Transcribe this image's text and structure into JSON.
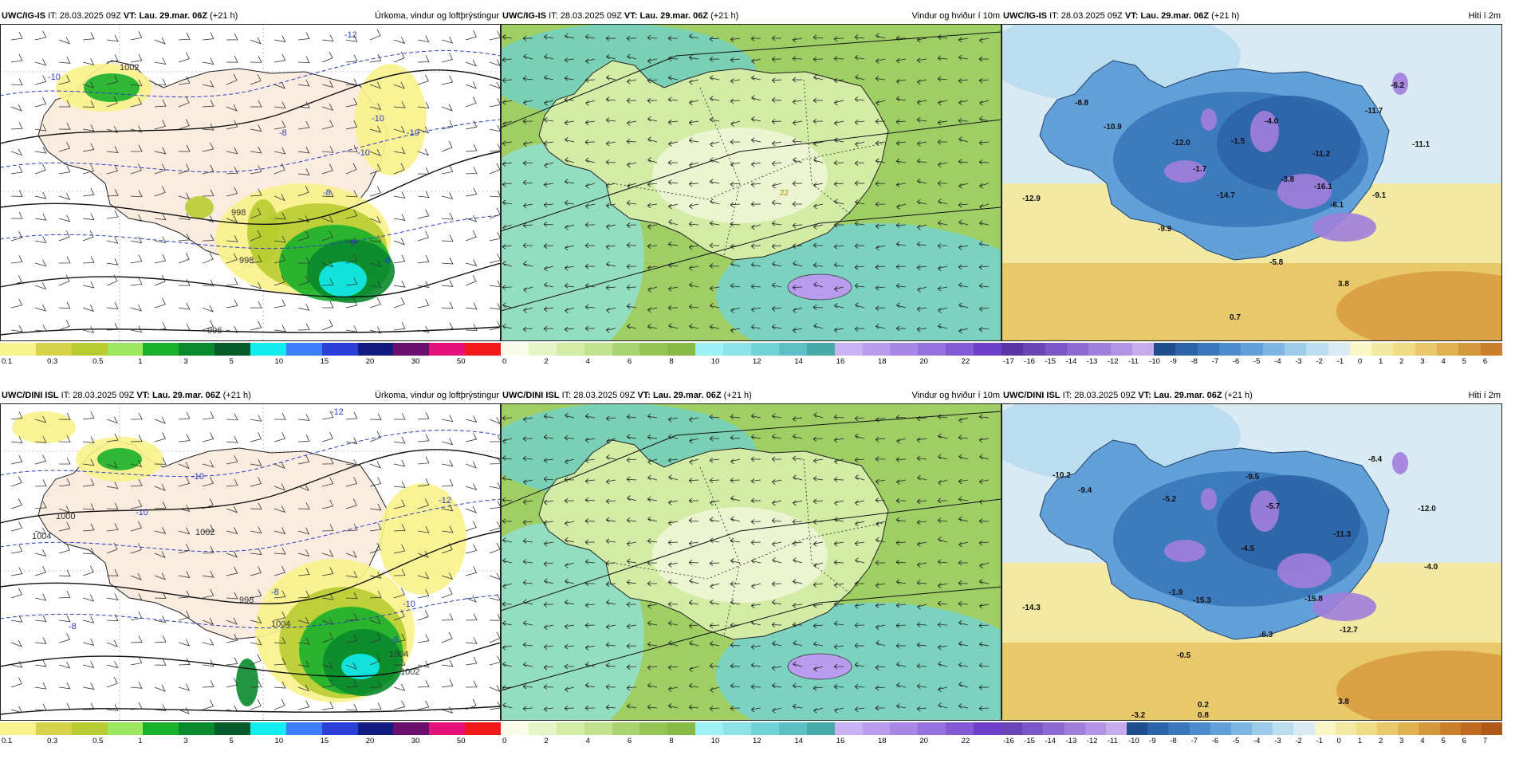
{
  "panels": [
    {
      "model": "UWC/IG-IS",
      "it_label": "IT:",
      "it": "28.03.2025 09Z",
      "vt_label": "VT:",
      "vt": "Lau. 29.mar. 06Z",
      "lead": "(+21 h)",
      "title": "Úrkoma, vindur og loftþrýstingur",
      "kind": "precip",
      "labels": [
        "1002",
        "998",
        "998",
        "996",
        "-10",
        "-10",
        "-8",
        "-8",
        "-12",
        "-10",
        "-6",
        "-8",
        "-10"
      ],
      "colorbar": {
        "colors": [
          "#f8f28a",
          "#d6d24a",
          "#b7cc30",
          "#9be860",
          "#19b02c",
          "#0a8a2e",
          "#055c2a",
          "#12ecee",
          "#3f7dff",
          "#2b3fd6",
          "#121b80",
          "#6a0f6e",
          "#e4117a",
          "#f01818"
        ],
        "ticks": [
          "0.1",
          "0.3",
          "0.5",
          "1",
          "3",
          "5",
          "10",
          "15",
          "20",
          "30",
          "50"
        ]
      }
    },
    {
      "model": "UWC/IG-IS",
      "it_label": "IT:",
      "it": "28.03.2025 09Z",
      "vt_label": "VT:",
      "vt": "Lau. 29.mar. 06Z",
      "lead": "(+21 h)",
      "title": "Vindur og hviður í 10m",
      "kind": "wind",
      "labels": [
        "22"
      ],
      "colorbar": {
        "colors": [
          "#f7fbe8",
          "#e4f4c4",
          "#d2eca6",
          "#bfe190",
          "#a9d36f",
          "#95c557",
          "#86b945",
          "#9ef2f6",
          "#8ee3e8",
          "#72d3d6",
          "#5ec0c4",
          "#48aaa8",
          "#c8b2f4",
          "#b99ced",
          "#a886e6",
          "#9670dd",
          "#845ad4",
          "#6e3fc8"
        ],
        "ticks": [
          "0",
          "2",
          "4",
          "6",
          "8",
          "10",
          "12",
          "14",
          "16",
          "18",
          "20",
          "22"
        ]
      }
    },
    {
      "model": "UWC/IG-IS",
      "it_label": "IT:",
      "it": "28.03.2025 09Z",
      "vt_label": "VT:",
      "vt": "Lau. 29.mar. 06Z",
      "lead": "(+21 h)",
      "title": "Hiti í 2m",
      "kind": "temp",
      "labels": [
        "-8.8",
        "-10.9",
        "-12.0",
        "-1.5",
        "-4.0",
        "-11.7",
        "-6.2",
        "-11.1",
        "-1.7",
        "-14.7",
        "-3.8",
        "-16.1",
        "-11.2",
        "-6.1",
        "-9.1",
        "-12.9",
        "-9.9",
        "-5.8",
        "3.8",
        "0.7"
      ],
      "colorbar": {
        "colors": [
          "#5a34a4",
          "#6b44b6",
          "#7c56c6",
          "#8e69d2",
          "#a07edc",
          "#b394e4",
          "#c6acec",
          "#1f4e8e",
          "#2c63a8",
          "#3a77bc",
          "#4c8bcc",
          "#61a0d8",
          "#7db6e2",
          "#9ccbea",
          "#bcdcef",
          "#d9ebf2",
          "#fbf6c8",
          "#f4e9a2",
          "#eedb84",
          "#e8c868",
          "#e0b14f",
          "#d6983c",
          "#ca7f2c"
        ],
        "ticks": [
          "-17",
          "-16",
          "-15",
          "-14",
          "-13",
          "-12",
          "-11",
          "-10",
          "-9",
          "-8",
          "-7",
          "-6",
          "-5",
          "-4",
          "-3",
          "-2",
          "-1",
          "0",
          "1",
          "2",
          "3",
          "4",
          "5",
          "6"
        ]
      }
    },
    {
      "model": "UWC/DINI ISL",
      "it_label": "IT:",
      "it": "28.03.2025 09Z",
      "vt_label": "VT:",
      "vt": "Lau. 29.mar. 06Z",
      "lead": "(+21 h)",
      "title": "Úrkoma, vindur og loftþrýstingur",
      "kind": "precip",
      "labels": [
        "1000",
        "1004",
        "1002",
        "998",
        "1004",
        "-12",
        "-10",
        "-10",
        "-8",
        "-12",
        "-10",
        "-8",
        "-6",
        "1004",
        "1002"
      ],
      "colorbar": {
        "colors": [
          "#f8f28a",
          "#d6d24a",
          "#b7cc30",
          "#9be860",
          "#19b02c",
          "#0a8a2e",
          "#055c2a",
          "#12ecee",
          "#3f7dff",
          "#2b3fd6",
          "#121b80",
          "#6a0f6e",
          "#e4117a",
          "#f01818"
        ],
        "ticks": [
          "0.1",
          "0.3",
          "0.5",
          "1",
          "3",
          "5",
          "10",
          "15",
          "20",
          "30",
          "50"
        ]
      }
    },
    {
      "model": "UWC/DINI ISL",
      "it_label": "IT:",
      "it": "28.03.2025 09Z",
      "vt_label": "VT:",
      "vt": "Lau. 29.mar. 06Z",
      "lead": "(+21 h)",
      "title": "Vindur og hviður í 10m",
      "kind": "wind",
      "labels": [],
      "colorbar": {
        "colors": [
          "#f7fbe8",
          "#e4f4c4",
          "#d2eca6",
          "#bfe190",
          "#a9d36f",
          "#95c557",
          "#86b945",
          "#9ef2f6",
          "#8ee3e8",
          "#72d3d6",
          "#5ec0c4",
          "#48aaa8",
          "#c8b2f4",
          "#b99ced",
          "#a886e6",
          "#9670dd",
          "#845ad4",
          "#6e3fc8"
        ],
        "ticks": [
          "0",
          "2",
          "4",
          "6",
          "8",
          "10",
          "12",
          "14",
          "16",
          "18",
          "20",
          "22"
        ]
      }
    },
    {
      "model": "UWC/DINI ISL",
      "it_label": "IT:",
      "it": "28.03.2025 09Z",
      "vt_label": "VT:",
      "vt": "Lau. 29.mar. 06Z",
      "lead": "(+21 h)",
      "title": "Hiti í 2m",
      "kind": "temp",
      "labels": [
        "-10.2",
        "-9.4",
        "-5.2",
        "-9.5",
        "-5.7",
        "-8.4",
        "-12.0",
        "-11.3",
        "-4.5",
        "-4.0",
        "-1.9",
        "-15.3",
        "-15.8",
        "-6.3",
        "-12.7",
        "-14.3",
        "-0.5",
        "-3.2",
        "0.2",
        "3.8",
        "0.8"
      ],
      "colorbar": {
        "colors": [
          "#6b44b6",
          "#7c56c6",
          "#8e69d2",
          "#a07edc",
          "#b394e4",
          "#c6acec",
          "#1f4e8e",
          "#2c63a8",
          "#3a77bc",
          "#4c8bcc",
          "#61a0d8",
          "#7db6e2",
          "#9ccbea",
          "#bcdcef",
          "#d9ebf2",
          "#fbf6c8",
          "#f4e9a2",
          "#eedb84",
          "#e8c868",
          "#e0b14f",
          "#d6983c",
          "#ca7f2c",
          "#bd6a20",
          "#b0571a"
        ],
        "ticks": [
          "-16",
          "-15",
          "-14",
          "-13",
          "-12",
          "-11",
          "-10",
          "-9",
          "-8",
          "-7",
          "-6",
          "-5",
          "-4",
          "-3",
          "-2",
          "-1",
          "0",
          "1",
          "2",
          "3",
          "4",
          "5",
          "6",
          "7"
        ]
      }
    }
  ]
}
